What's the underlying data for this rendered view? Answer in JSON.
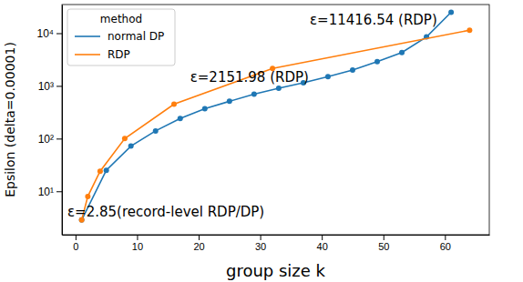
{
  "chart_data": {
    "type": "line",
    "x_label": "group size k",
    "y_label": "Epsilon (delta=0.00001)",
    "log": "y",
    "legend": "upper left",
    "legend_title": "method",
    "marker": "circle",
    "xlim": [
      -2.2,
      67.2
    ],
    "xticks": [
      0,
      10,
      20,
      30,
      40,
      50,
      60
    ],
    "ylim": [
      1.5,
      35000
    ],
    "yticks": [
      {
        "value": 10,
        "label": "10¹"
      },
      {
        "value": 100,
        "label": "10²"
      },
      {
        "value": 1000,
        "label": "10³"
      },
      {
        "value": 10000,
        "label": "10⁴"
      }
    ],
    "series": [
      {
        "name": "normal DP",
        "color": "#1f77b4",
        "x": [
          1,
          5,
          9,
          13,
          17,
          21,
          25,
          29,
          33,
          37,
          41,
          45,
          49,
          53,
          57,
          61
        ],
        "values": [
          2.85,
          25,
          72,
          140,
          240,
          370,
          510,
          700,
          900,
          1150,
          1500,
          2000,
          2900,
          4300,
          8500,
          25000
        ]
      },
      {
        "name": "RDP",
        "color": "#ff7f0e",
        "x": [
          1,
          2,
          4,
          8,
          16,
          32,
          64
        ],
        "values": [
          2.85,
          8,
          24,
          100,
          450,
          2151.98,
          11416.54
        ]
      }
    ],
    "annotations": [
      "ε=11416.54 (RDP)",
      "ε=2151.98 (RDP)",
      "ε=2.85(record-level RDP/DP)"
    ]
  }
}
